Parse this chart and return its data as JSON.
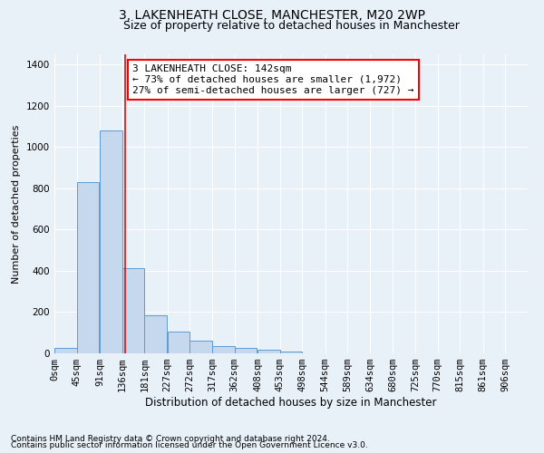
{
  "title1": "3, LAKENHEATH CLOSE, MANCHESTER, M20 2WP",
  "title2": "Size of property relative to detached houses in Manchester",
  "xlabel": "Distribution of detached houses by size in Manchester",
  "ylabel": "Number of detached properties",
  "bar_values": [
    25,
    830,
    1080,
    415,
    183,
    105,
    60,
    35,
    25,
    18,
    10,
    0,
    0,
    0,
    0,
    0,
    0,
    0,
    0,
    0
  ],
  "bar_left_edges": [
    0,
    45,
    91,
    136,
    181,
    227,
    272,
    317,
    362,
    408,
    453,
    498,
    544,
    589,
    634,
    680,
    725,
    770,
    815,
    861
  ],
  "bin_width": 45,
  "tick_labels": [
    "0sqm",
    "45sqm",
    "91sqm",
    "136sqm",
    "181sqm",
    "227sqm",
    "272sqm",
    "317sqm",
    "362sqm",
    "408sqm",
    "453sqm",
    "498sqm",
    "544sqm",
    "589sqm",
    "634sqm",
    "680sqm",
    "725sqm",
    "770sqm",
    "815sqm",
    "861sqm",
    "906sqm"
  ],
  "bar_color": "#c5d8ed",
  "bar_edge_color": "#5b9bd5",
  "redline_x": 142,
  "ylim": [
    0,
    1450
  ],
  "yticks": [
    0,
    200,
    400,
    600,
    800,
    1000,
    1200,
    1400
  ],
  "annotation_title": "3 LAKENHEATH CLOSE: 142sqm",
  "annotation_line1": "← 73% of detached houses are smaller (1,972)",
  "annotation_line2": "27% of semi-detached houses are larger (727) →",
  "footnote1": "Contains HM Land Registry data © Crown copyright and database right 2024.",
  "footnote2": "Contains public sector information licensed under the Open Government Licence v3.0.",
  "background_color": "#e8f0f8",
  "plot_bg_color": "#e8f0f8",
  "grid_color": "#ffffff",
  "title1_fontsize": 10,
  "title2_fontsize": 9,
  "xlabel_fontsize": 8.5,
  "ylabel_fontsize": 8,
  "tick_fontsize": 7.5,
  "annotation_fontsize": 8,
  "footnote_fontsize": 6.5
}
